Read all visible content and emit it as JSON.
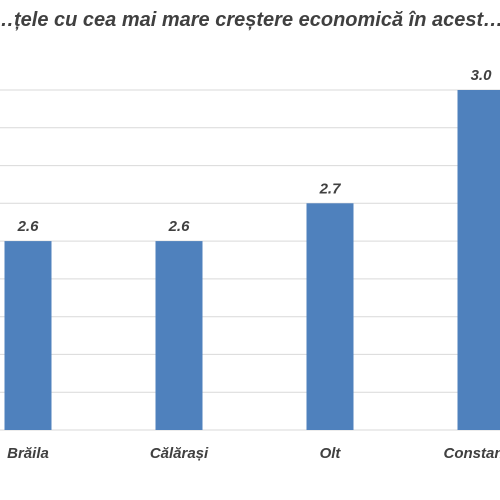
{
  "chart_data": {
    "type": "bar",
    "title": "…țele cu cea mai mare creștere economică în acest…",
    "categories": [
      "Brăila",
      "Călărași",
      "Olt",
      "Constan…"
    ],
    "values": [
      2.6,
      2.6,
      2.7,
      3.0
    ],
    "value_labels": [
      "2.6",
      "2.6",
      "2.7",
      "3.0"
    ],
    "xlabel": "",
    "ylabel": "",
    "ylim": [
      2.1,
      3.0
    ],
    "grid": true,
    "legend": "none",
    "colors": {
      "bar": "#4f81bd",
      "text": "#404040",
      "grid": "#d9d9d9"
    }
  }
}
